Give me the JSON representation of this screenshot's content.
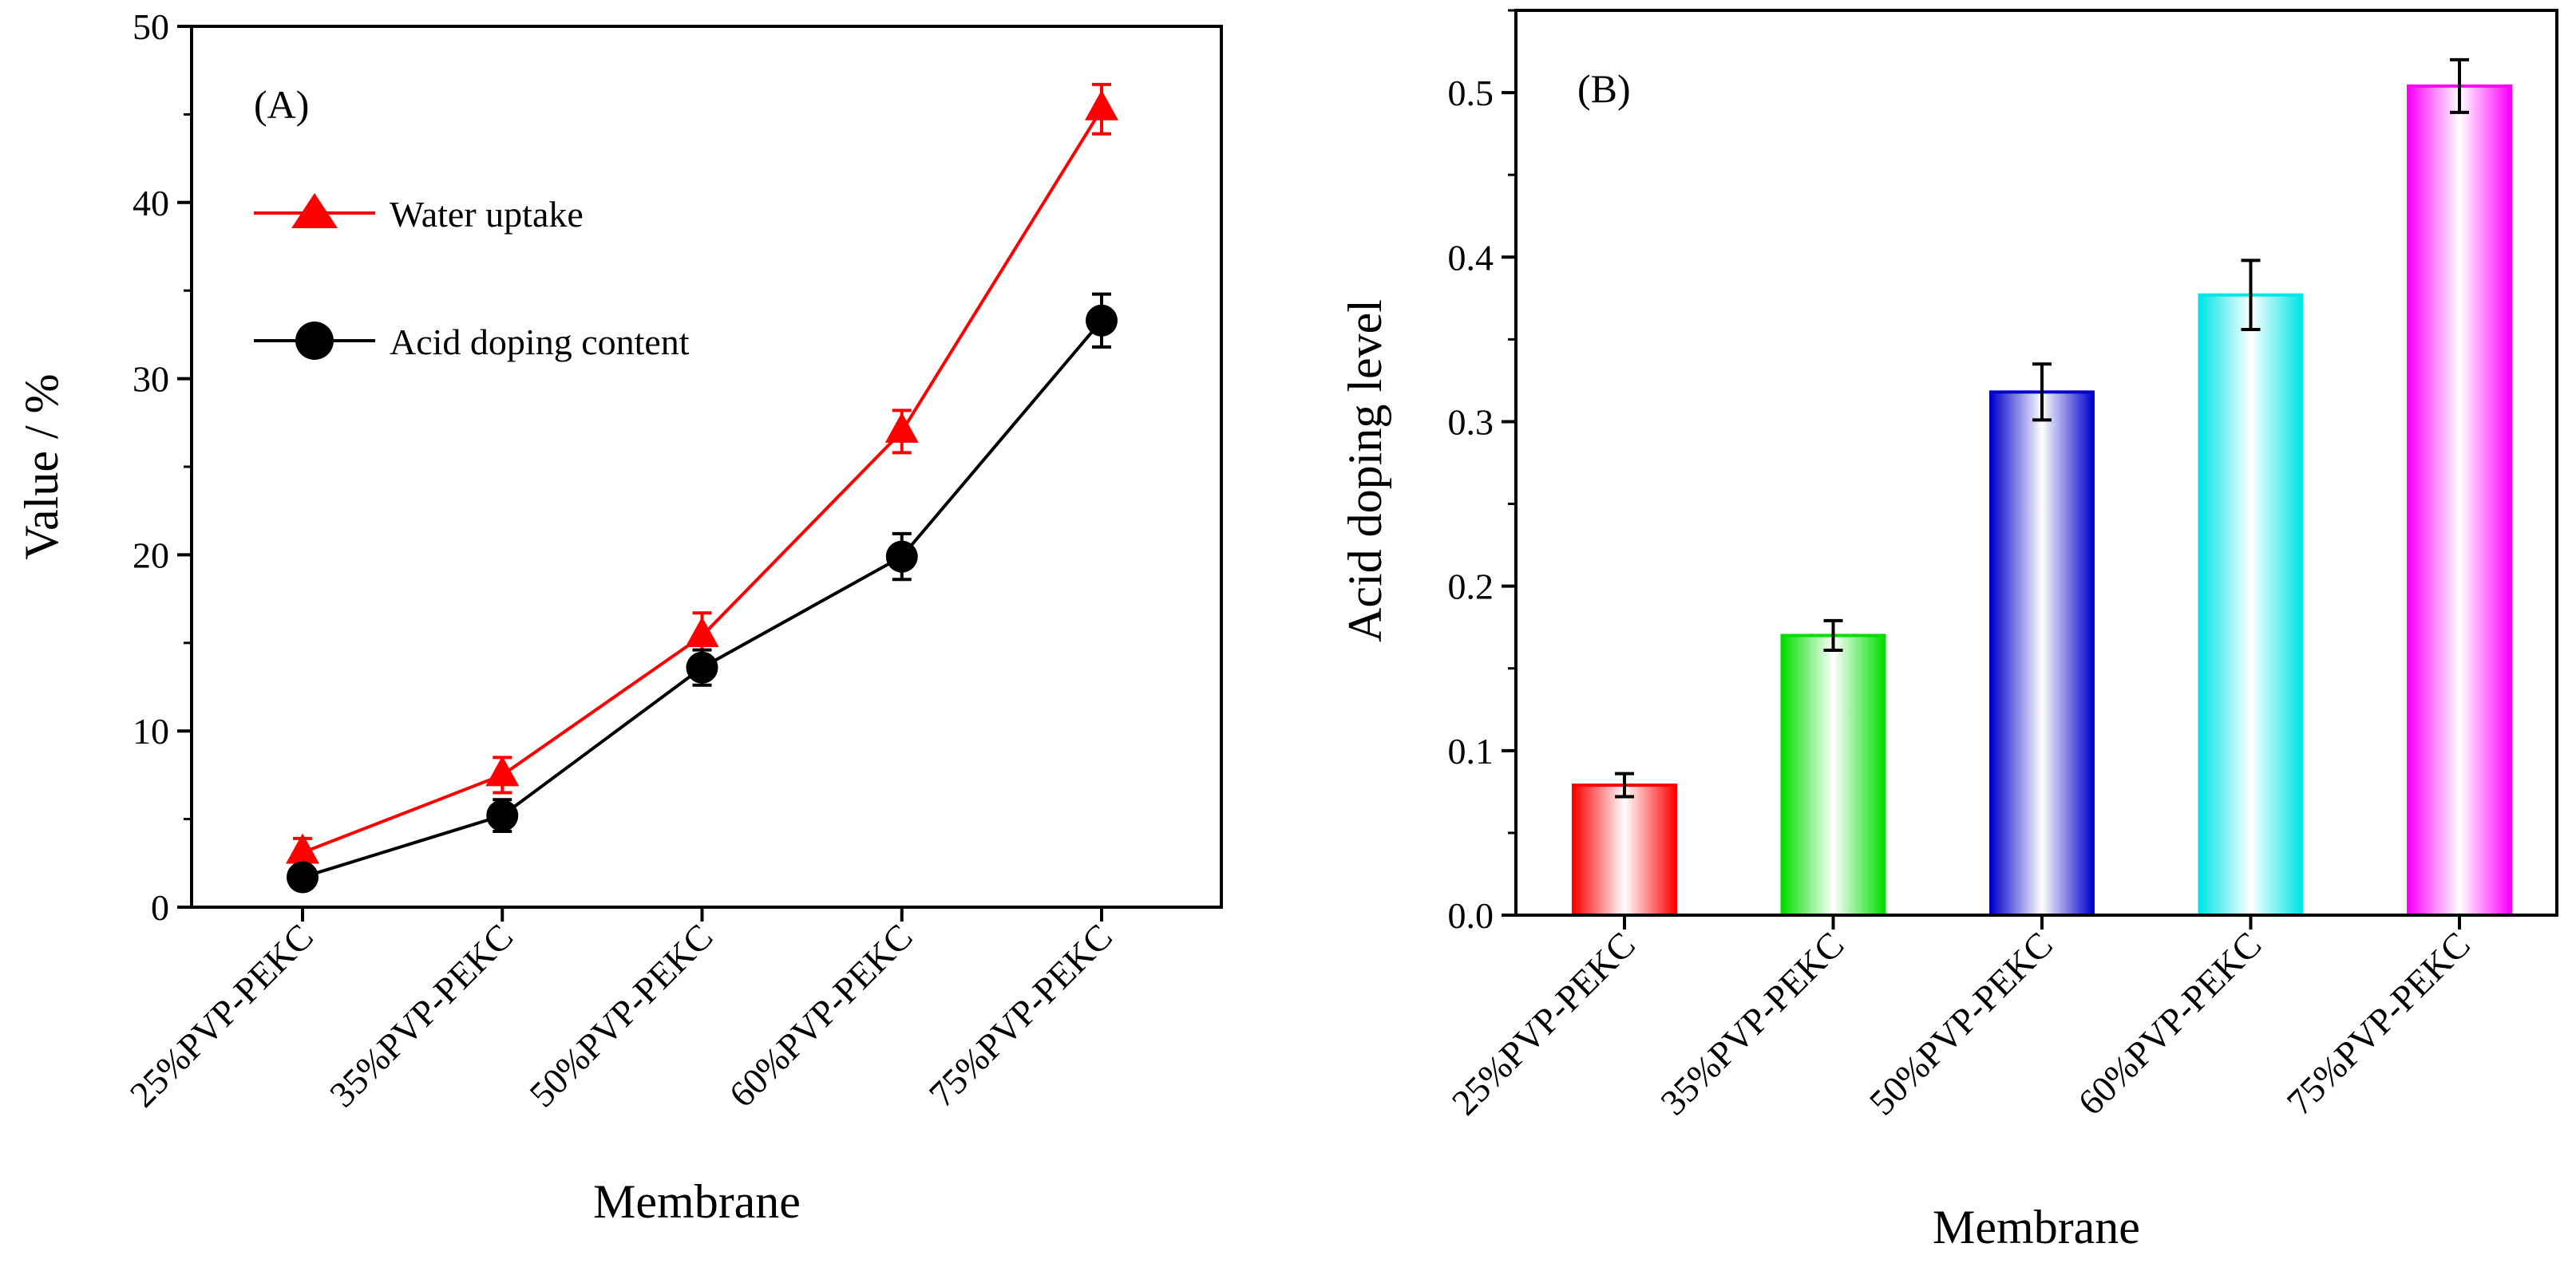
{
  "chart_data": [
    {
      "panel_label": "(A)",
      "type": "line",
      "categories": [
        "25%PVP-PEKC",
        "35%PVP-PEKC",
        "50%PVP-PEKC",
        "60%PVP-PEKC",
        "75%PVP-PEKC"
      ],
      "series": [
        {
          "name": "Water uptake",
          "color": "#ff0000",
          "marker": "triangle",
          "values": [
            3.1,
            7.5,
            15.4,
            27.0,
            45.3
          ],
          "errors": [
            0.8,
            1.0,
            1.3,
            1.2,
            1.4
          ]
        },
        {
          "name": "Acid doping content",
          "color": "#000000",
          "marker": "circle",
          "values": [
            1.7,
            5.2,
            13.6,
            19.9,
            33.3
          ],
          "errors": [
            0.6,
            0.9,
            1.0,
            1.3,
            1.5
          ]
        }
      ],
      "xlabel": "Membrane",
      "ylabel": "Value / %",
      "ylim": [
        0,
        50
      ],
      "yticks": [
        "0",
        "10",
        "20",
        "30",
        "40",
        "50"
      ],
      "legend": "top-left"
    },
    {
      "panel_label": "(B)",
      "type": "bar",
      "categories": [
        "25%PVP-PEKC",
        "35%PVP-PEKC",
        "50%PVP-PEKC",
        "60%PVP-PEKC",
        "75%PVP-PEKC"
      ],
      "values": [
        0.079,
        0.17,
        0.318,
        0.377,
        0.504
      ],
      "errors": [
        0.007,
        0.009,
        0.017,
        0.021,
        0.016
      ],
      "colors": [
        "#ff0000",
        "#00dd00",
        "#0000cc",
        "#00e5e5",
        "#ff00ff"
      ],
      "xlabel": "Membrane",
      "ylabel": "Acid doping level",
      "ylim": [
        0,
        0.55
      ],
      "yticks": [
        "0.0",
        "0.1",
        "0.2",
        "0.3",
        "0.4",
        "0.5"
      ]
    }
  ]
}
